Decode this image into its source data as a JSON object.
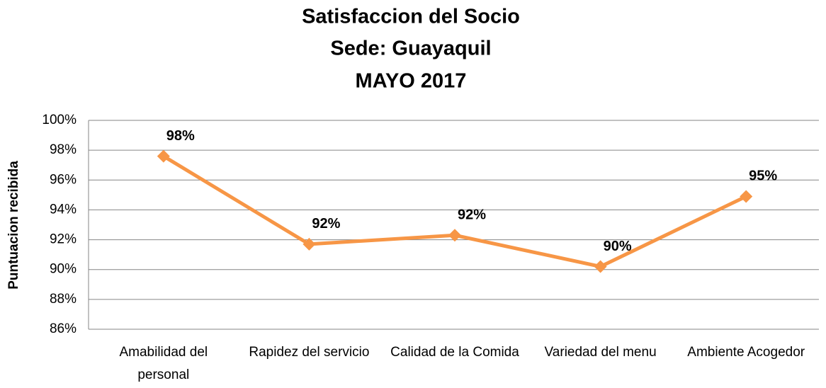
{
  "chart_data": {
    "type": "line",
    "title": "Satisfaccion del Socio",
    "subtitle": [
      "Sede: Guayaquil",
      "MAYO 2017"
    ],
    "y_label": "Puntuacion recibida",
    "categories": [
      "Amabilidad del personal",
      "Rapidez del servicio",
      "Calidad de la Comida",
      "Variedad del menu",
      "Ambiente Acogedor"
    ],
    "values": [
      97.6,
      91.7,
      92.3,
      90.2,
      94.9
    ],
    "value_labels": [
      "98%",
      "92%",
      "92%",
      "90%",
      "95%"
    ],
    "color": "#f79646",
    "ylim": [
      86,
      100
    ],
    "yticks": [
      {
        "value": 86,
        "label": "86%"
      },
      {
        "value": 88,
        "label": "88%"
      },
      {
        "value": 90,
        "label": "90%"
      },
      {
        "value": 92,
        "label": "92%"
      },
      {
        "value": 94,
        "label": "94%"
      },
      {
        "value": 96,
        "label": "96%"
      },
      {
        "value": 98,
        "label": "98%"
      },
      {
        "value": 100,
        "label": "100%"
      }
    ],
    "grid": true
  }
}
